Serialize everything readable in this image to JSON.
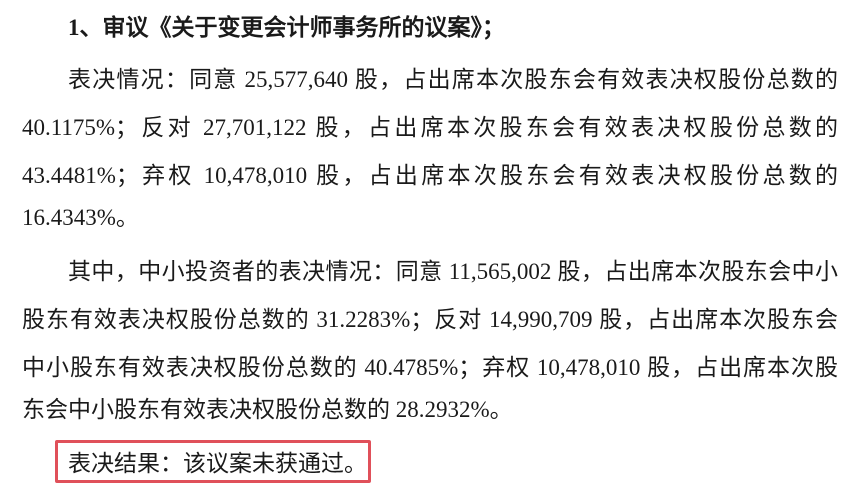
{
  "heading": "1、审议《关于变更会计师事务所的议案》；",
  "paragraph1": [
    "表决情况：同意 25,577,640 股，占出席本次股东会有效表决权股份总数的",
    "40.1175%；反对 27,701,122 股，占出席本次股东会有效表决权股份总数的",
    "43.4481%；弃权 10,478,010 股，占出席本次股东会有效表决权股份总数的",
    "16.4343%。"
  ],
  "paragraph2": [
    "其中，中小投资者的表决情况：同意 11,565,002 股，占出席本次股东会中小",
    "股东有效表决权股份总数的 31.2283%；反对 14,990,709 股，占出席本次股东会",
    "中小股东有效表决权股份总数的 40.4785%；弃权 10,478,010 股，占出席本次股",
    "东会中小股东有效表决权股份总数的 28.2932%。"
  ],
  "result": "表决结果：该议案未获通过。",
  "highlight_color": "#e0505a"
}
